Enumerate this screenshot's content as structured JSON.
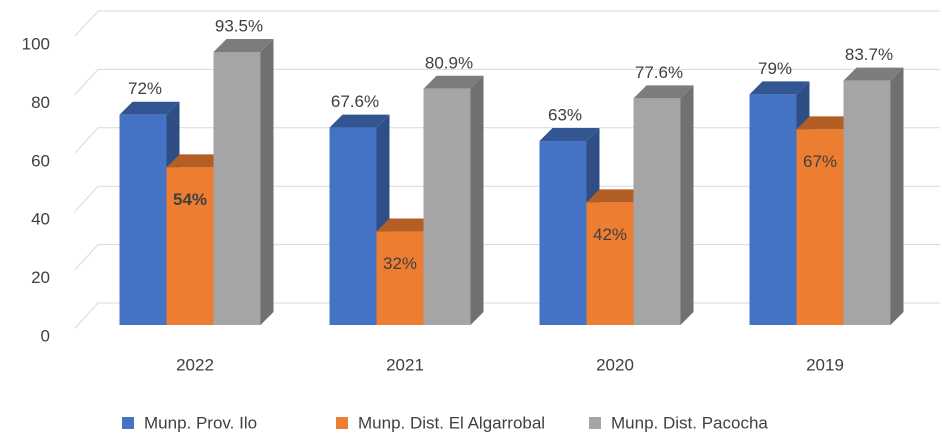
{
  "chart_data": {
    "type": "bar",
    "categories": [
      "2022",
      "2021",
      "2020",
      "2019"
    ],
    "series": [
      {
        "name": "Munp. Prov. Ilo",
        "color": "#4472c4",
        "values": [
          72,
          67.6,
          63,
          79
        ],
        "value_labels": [
          "72%",
          "67.6%",
          "63%",
          "79%"
        ]
      },
      {
        "name": "Munp. Dist. El Algarrobal",
        "color": "#ed7d31",
        "values": [
          54,
          32,
          42,
          67
        ],
        "value_labels": [
          "54%",
          "32%",
          "42%",
          "67%"
        ]
      },
      {
        "name": "Munp. Dist. Pacocha",
        "color": "#a5a5a5",
        "values": [
          93.5,
          80.9,
          77.6,
          83.7
        ],
        "value_labels": [
          "93.5%",
          "80.9%",
          "77.6%",
          "83.7%"
        ]
      }
    ],
    "ylim": [
      0,
      100
    ],
    "yticks": [
      0,
      20,
      40,
      60,
      80,
      100
    ],
    "grid": true,
    "legend": "bottom"
  }
}
